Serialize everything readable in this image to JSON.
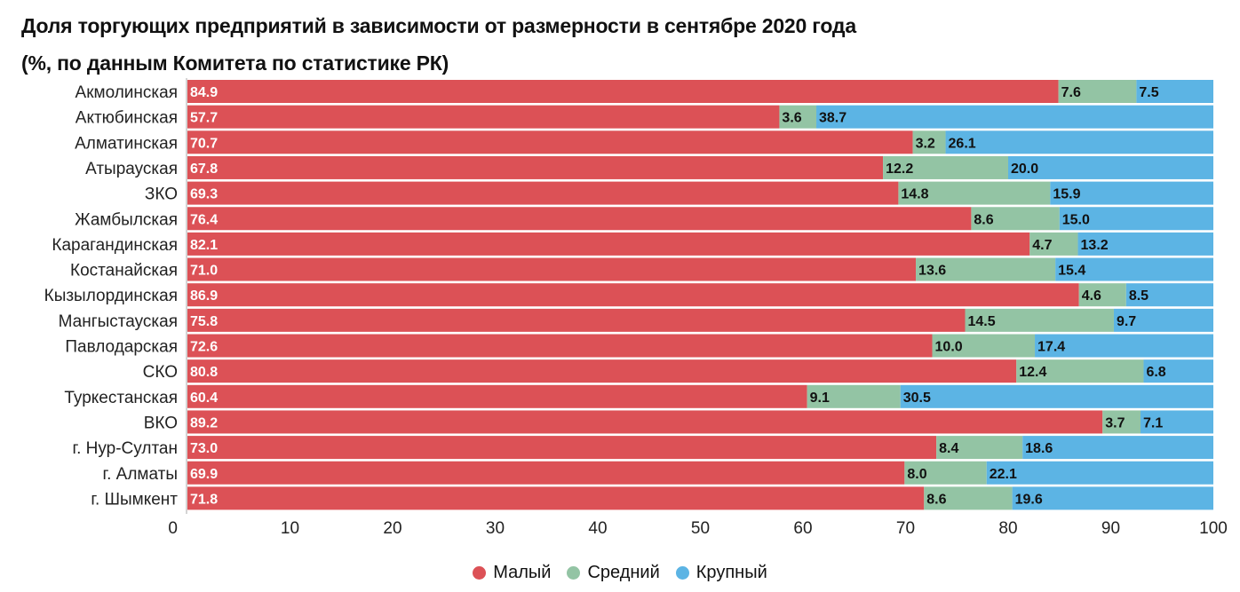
{
  "title_line1": "Доля торгующих предприятий в зависимости от размерности в сентябре 2020 года",
  "title_line2": "(%, по данным Комитета по статистике РК)",
  "colors": {
    "small": "#dc5156",
    "medium": "#93c4a4",
    "large": "#5cb4e4"
  },
  "legend": [
    "Малый",
    "Средний",
    "Крупный"
  ],
  "chart_data": {
    "type": "bar",
    "orientation": "horizontal",
    "stacked": true,
    "categories": [
      "Акмолинская",
      "Актюбинская",
      "Алматинская",
      "Атырауская",
      "ЗКО",
      "Жамбылская",
      "Карагандинская",
      "Костанайская",
      "Кызылординская",
      "Мангыстауская",
      "Павлодарская",
      "СКО",
      "Туркестанская",
      "ВКО",
      "г. Нур-Султан",
      "г. Алматы",
      "г. Шымкент"
    ],
    "series": [
      {
        "name": "Малый",
        "values": [
          84.9,
          57.7,
          70.7,
          67.8,
          69.3,
          76.4,
          82.1,
          71.0,
          86.9,
          75.8,
          72.6,
          80.8,
          60.4,
          89.2,
          73.0,
          69.9,
          71.8
        ]
      },
      {
        "name": "Средний",
        "values": [
          7.6,
          3.6,
          3.2,
          12.2,
          14.8,
          8.6,
          4.7,
          13.6,
          4.6,
          14.5,
          10.0,
          12.4,
          9.1,
          3.7,
          8.4,
          8.0,
          8.6
        ]
      },
      {
        "name": "Крупный",
        "values": [
          7.5,
          38.7,
          26.1,
          20.0,
          15.9,
          15.0,
          13.2,
          15.4,
          8.5,
          9.7,
          17.4,
          6.8,
          30.5,
          7.1,
          18.6,
          22.1,
          19.6
        ]
      }
    ],
    "xlim": [
      0,
      100
    ],
    "xticks": [
      0,
      10,
      20,
      30,
      40,
      50,
      60,
      70,
      80,
      90,
      100
    ],
    "legend_position": "bottom",
    "grid": false
  }
}
